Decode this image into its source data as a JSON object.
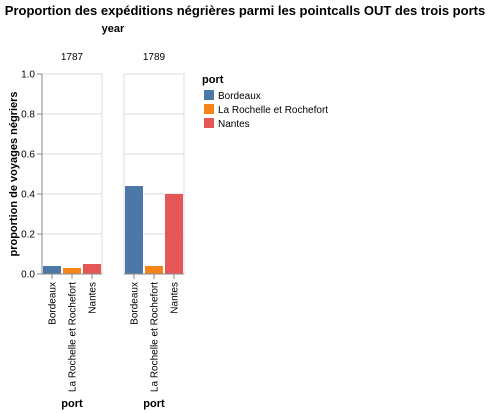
{
  "chart_data": {
    "type": "bar",
    "title": "Proportion des expéditions négrières parmi les pointcalls OUT des trois ports",
    "facet_header_title": "year",
    "facet_field": "year",
    "facets": [
      "1787",
      "1789"
    ],
    "categories": [
      "Bordeaux",
      "La Rochelle et Rochefort",
      "Nantes"
    ],
    "series": [
      {
        "facet": "1787",
        "values": [
          0.04,
          0.03,
          0.05
        ]
      },
      {
        "facet": "1789",
        "values": [
          0.44,
          0.04,
          0.4
        ]
      }
    ],
    "xlabel": "port",
    "ylabel": "proportion de voyages négriers",
    "ylim": [
      0,
      1.0
    ],
    "yticks": [
      "0.0",
      "0.2",
      "0.4",
      "0.6",
      "0.8",
      "1.0"
    ],
    "grid": true,
    "legend": {
      "title": "port",
      "position": "right",
      "items": [
        {
          "label": "Bordeaux",
          "color": "#4c78a8"
        },
        {
          "label": "La Rochelle et Rochefort",
          "color": "#f58518"
        },
        {
          "label": "Nantes",
          "color": "#e45756"
        }
      ]
    }
  }
}
